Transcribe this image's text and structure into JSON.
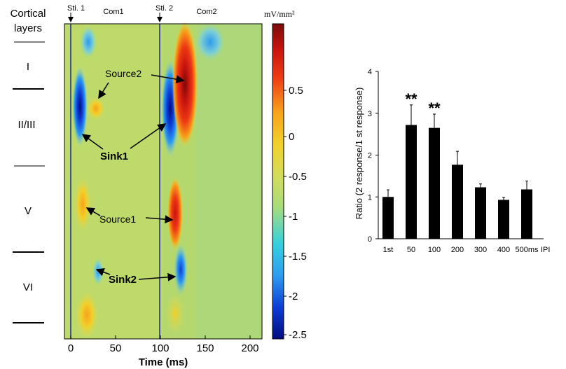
{
  "colors": {
    "bar": "#000000",
    "colormap": [
      "#000c80",
      "#0d3dd6",
      "#2d9bf0",
      "#34d0de",
      "#a8dc7a",
      "#d4dc5a",
      "#f2d02a",
      "#f7a21a",
      "#ee3a14",
      "#c8140e",
      "#7a0a0a"
    ]
  },
  "csd": {
    "layer_header": [
      "Cortical",
      "layers"
    ],
    "layers": [
      "I",
      "II/III",
      "V",
      "VI"
    ],
    "stim1_label": "Sti. 1",
    "stim2_label": "Sti. 2",
    "com1_label": "Com1",
    "com2_label": "Com2",
    "x_label": "Time (ms)",
    "x_ticks": [
      "0",
      "50",
      "100",
      "150",
      "200"
    ],
    "colorbar_unit": "mV/mm²",
    "colorbar_ticks": [
      "0.5",
      "0",
      "-0.5",
      "-1",
      "-1.5",
      "-2",
      "-2.5"
    ],
    "annotations": {
      "source2": "Source2",
      "sink1": "Sink1",
      "source1": "Source1",
      "sink2": "Sink2"
    }
  },
  "chart_data": {
    "type": "bar",
    "categories": [
      "1st",
      "50",
      "100",
      "200",
      "300",
      "400",
      "500ms"
    ],
    "values": [
      1.0,
      2.72,
      2.65,
      1.77,
      1.23,
      0.93,
      1.18
    ],
    "errors": [
      0.17,
      0.48,
      0.33,
      0.32,
      0.08,
      0.06,
      0.2
    ],
    "significance": [
      "",
      "**",
      "**",
      "",
      "",
      "",
      ""
    ],
    "xlabel": "IPI",
    "ylabel": "Ratio (2 response/1 st response)",
    "y_ticks": [
      "0",
      "1",
      "2",
      "3",
      "4"
    ],
    "ylim": [
      0,
      4
    ]
  }
}
